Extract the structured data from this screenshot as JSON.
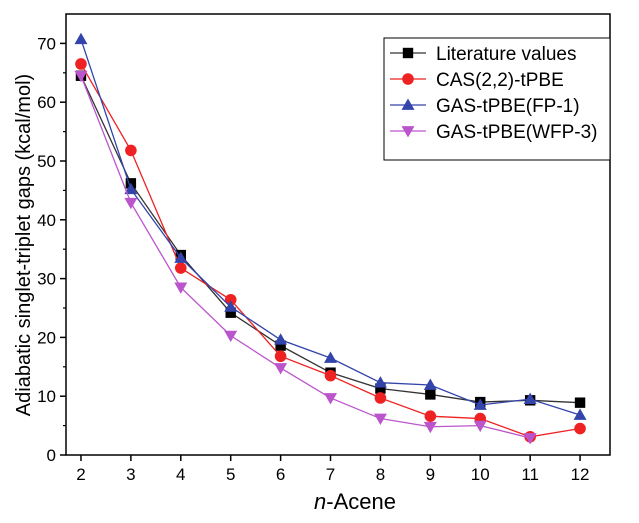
{
  "chart_data": {
    "type": "line",
    "xlabel_italic": "n",
    "xlabel_rest": "-Acene",
    "ylabel": "Adiabatic singlet-triplet gaps (kcal/mol)",
    "x": [
      2,
      3,
      4,
      5,
      6,
      7,
      8,
      9,
      10,
      11,
      12
    ],
    "xlim": [
      1.7,
      12.6
    ],
    "ylim": [
      0,
      75
    ],
    "yticks": [
      0,
      10,
      20,
      30,
      40,
      50,
      60,
      70
    ],
    "grid": false,
    "legend_position": "top-right",
    "series": [
      {
        "name": "Literature values",
        "marker": "square",
        "color": "#000000",
        "line_color": "#333333",
        "values": [
          64.5,
          46.2,
          34.0,
          24.2,
          18.6,
          14.0,
          11.3,
          10.3,
          9.0,
          9.3,
          8.9
        ]
      },
      {
        "name": "CAS(2,2)-tPBE",
        "marker": "circle",
        "color": "#ee2222",
        "line_color": "#ee2222",
        "values": [
          66.5,
          51.8,
          31.8,
          26.4,
          16.8,
          13.5,
          9.7,
          6.6,
          6.2,
          3.1,
          4.5
        ]
      },
      {
        "name": "GAS-tPBE(FP-1)",
        "marker": "triangle-up",
        "color": "#3344aa",
        "line_color": "#3344aa",
        "values": [
          70.7,
          45.2,
          33.5,
          25.2,
          19.6,
          16.5,
          12.3,
          11.9,
          8.5,
          9.5,
          6.8
        ]
      },
      {
        "name": "GAS-tPBE(WFP-3)",
        "marker": "triangle-down",
        "color": "#bb55cc",
        "line_color": "#bb55cc",
        "values": [
          64.5,
          42.9,
          28.5,
          20.3,
          14.8,
          9.7,
          6.2,
          4.8,
          5.0,
          2.9,
          null
        ]
      }
    ]
  }
}
